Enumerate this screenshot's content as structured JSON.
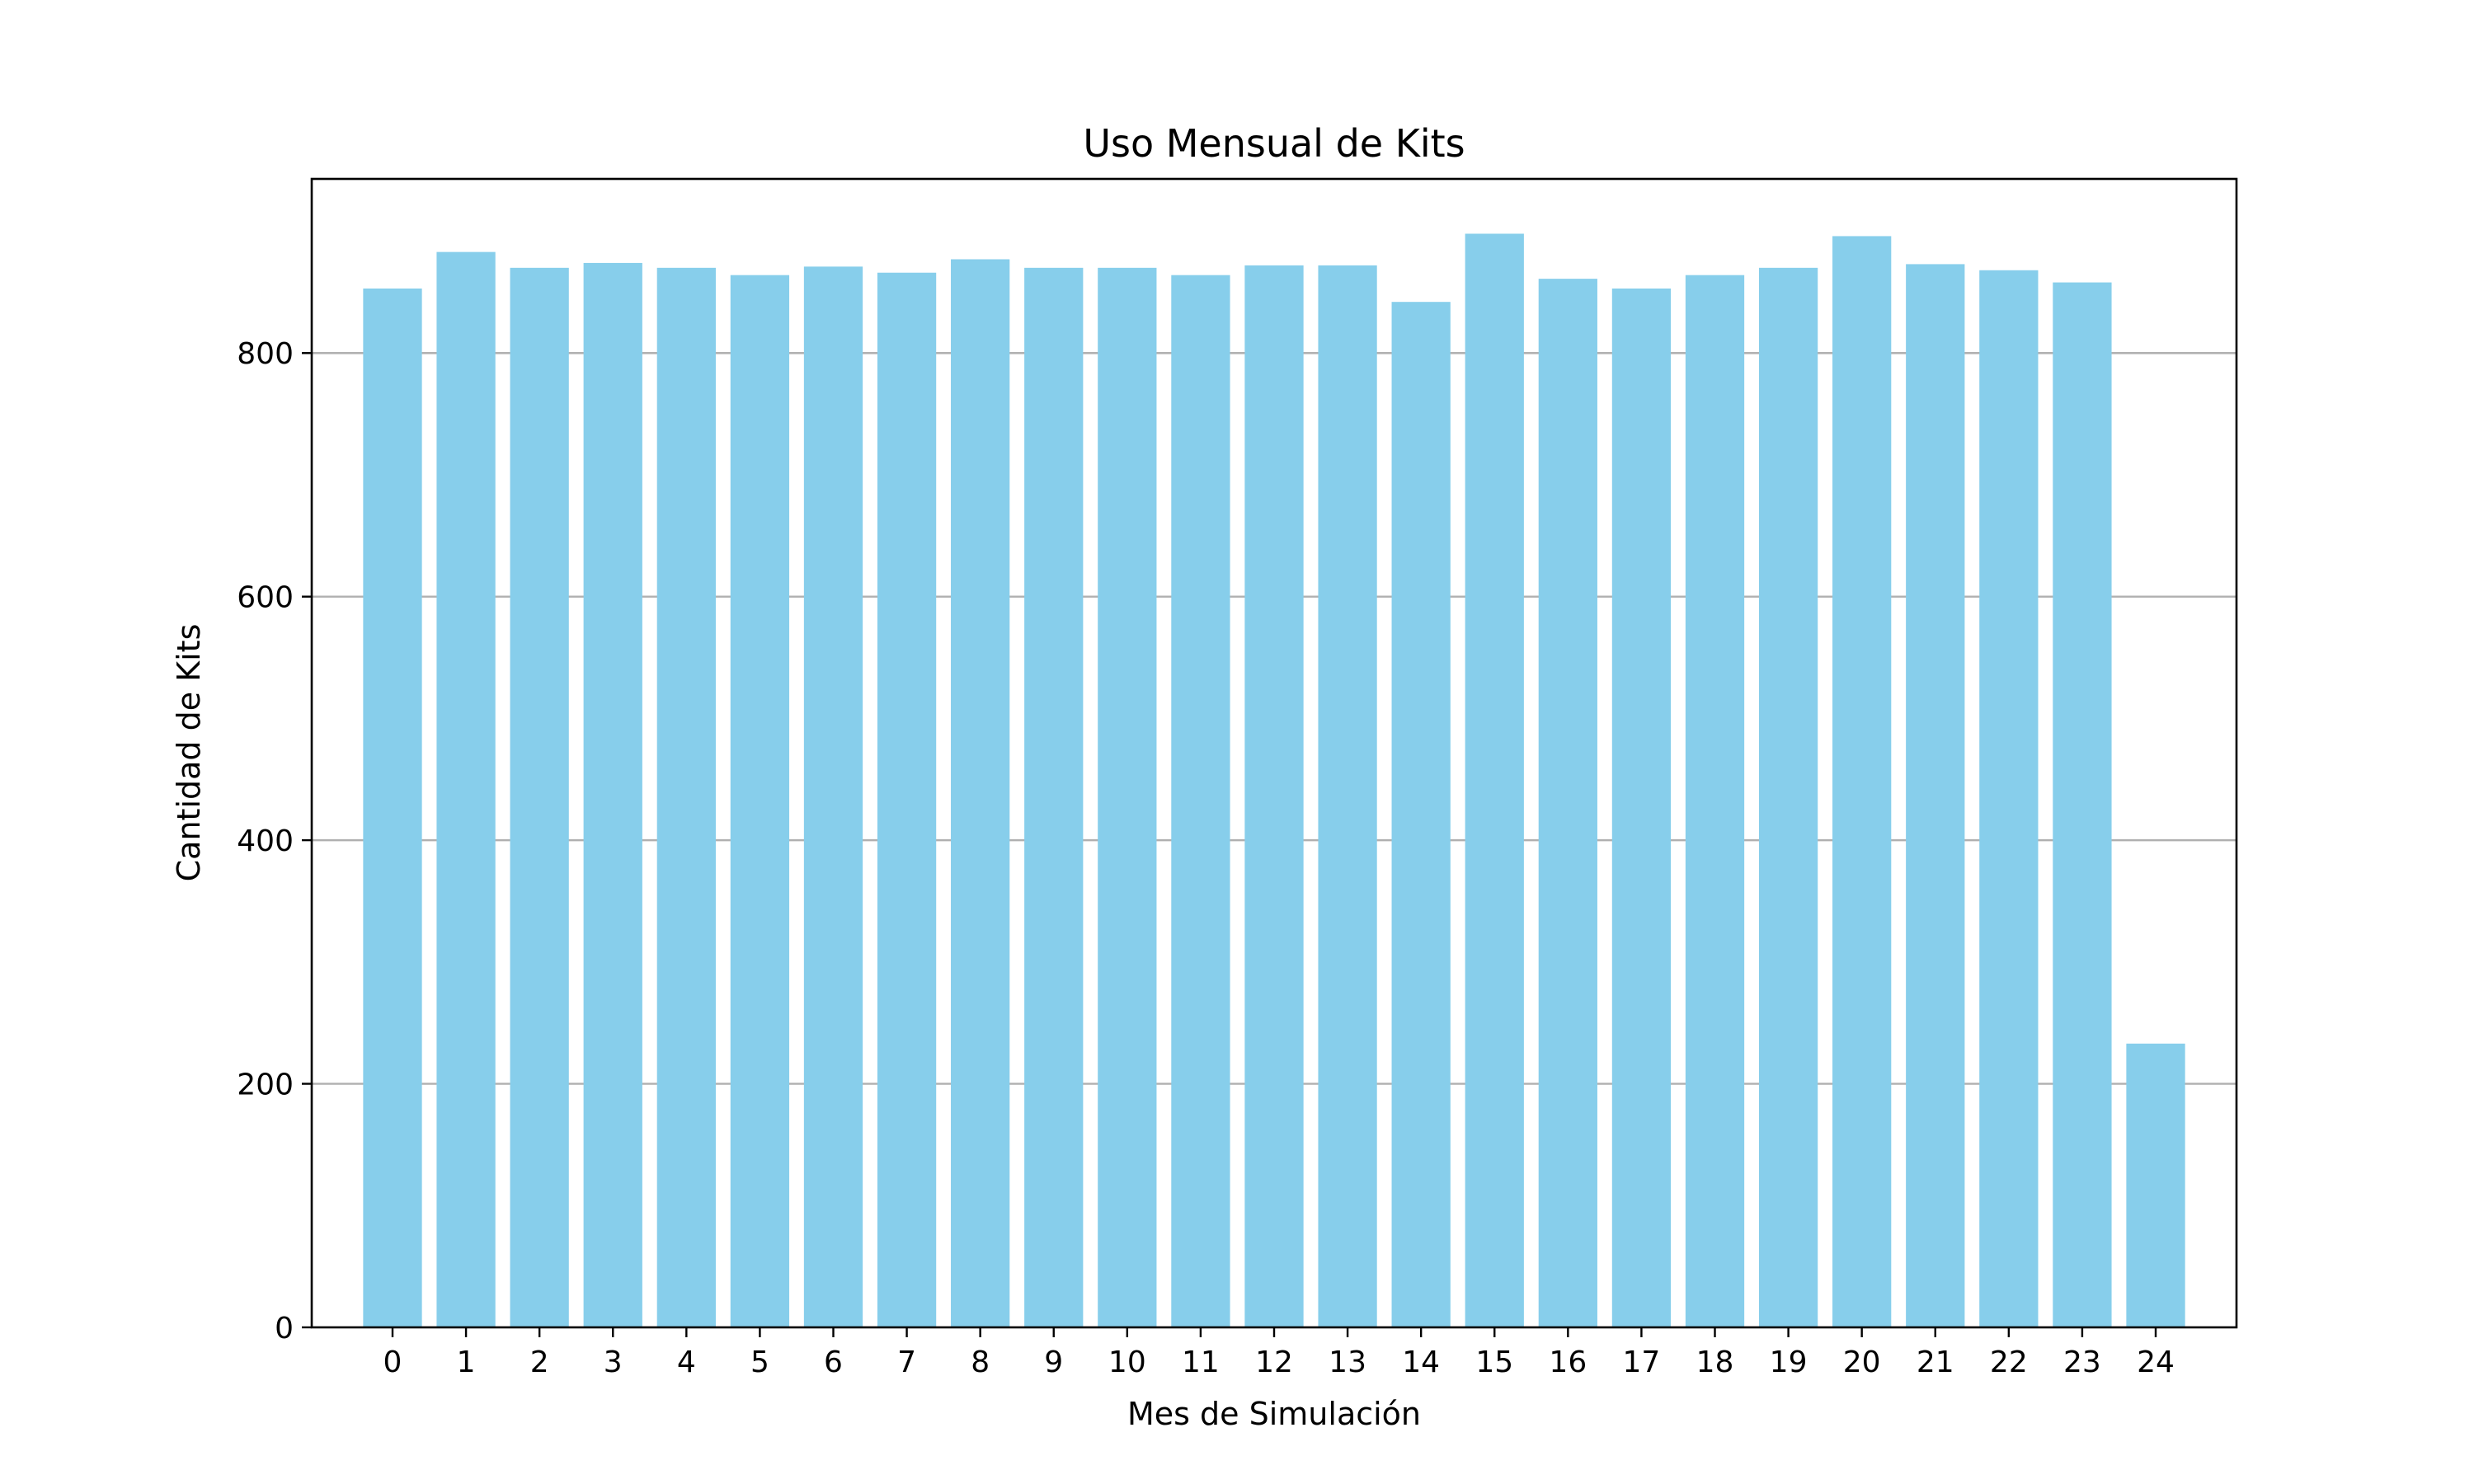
{
  "chart_data": {
    "type": "bar",
    "title": "Uso Mensual de Kits",
    "xlabel": "Mes de Simulación",
    "ylabel": "Cantidad de Kits",
    "categories": [
      "0",
      "1",
      "2",
      "3",
      "4",
      "5",
      "6",
      "7",
      "8",
      "9",
      "10",
      "11",
      "12",
      "13",
      "14",
      "15",
      "16",
      "17",
      "18",
      "19",
      "20",
      "21",
      "22",
      "23",
      "24"
    ],
    "values": [
      853,
      883,
      870,
      874,
      870,
      864,
      871,
      866,
      877,
      870,
      870,
      864,
      872,
      872,
      842,
      898,
      861,
      853,
      864,
      870,
      896,
      873,
      868,
      858,
      233
    ],
    "ylim": [
      0,
      943
    ],
    "yticks": [
      0,
      200,
      400,
      600,
      800
    ],
    "grid": "y",
    "bar_color": "#87ceeb",
    "grid_color": "#b0b0b0"
  }
}
